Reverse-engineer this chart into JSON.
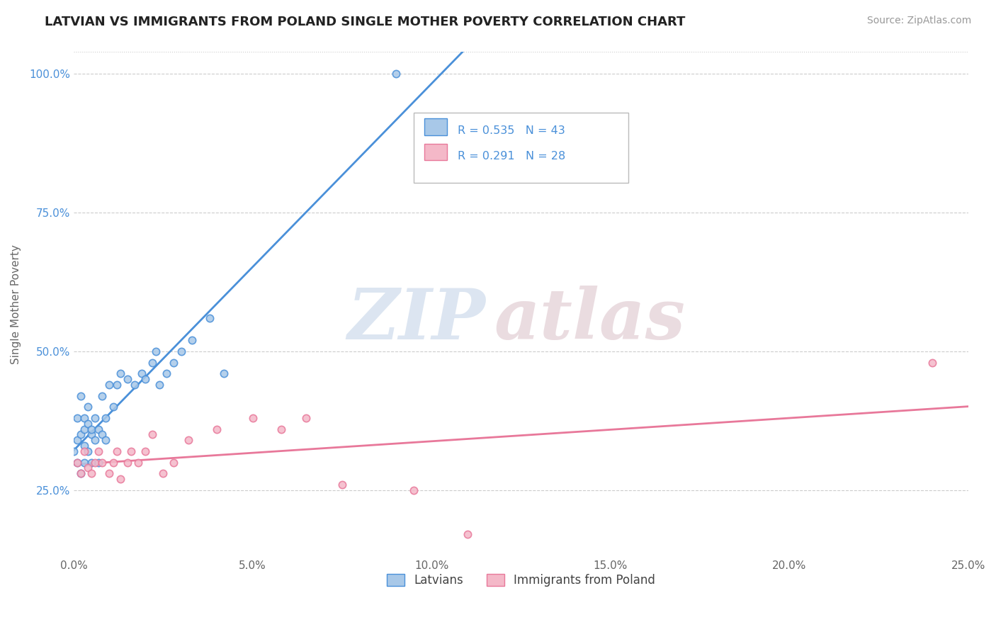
{
  "title": "LATVIAN VS IMMIGRANTS FROM POLAND SINGLE MOTHER POVERTY CORRELATION CHART",
  "source": "Source: ZipAtlas.com",
  "ylabel": "Single Mother Poverty",
  "xlim": [
    0.0,
    0.25
  ],
  "ylim": [
    0.13,
    1.04
  ],
  "xticks": [
    0.0,
    0.05,
    0.1,
    0.15,
    0.2,
    0.25
  ],
  "xtick_labels": [
    "0.0%",
    "5.0%",
    "10.0%",
    "15.0%",
    "20.0%",
    "25.0%"
  ],
  "yticks": [
    0.25,
    0.5,
    0.75,
    1.0
  ],
  "ytick_labels": [
    "25.0%",
    "50.0%",
    "75.0%",
    "100.0%"
  ],
  "legend_labels": [
    "Latvians",
    "Immigrants from Poland"
  ],
  "r_latvian": 0.535,
  "n_latvian": 43,
  "r_poland": 0.291,
  "n_poland": 28,
  "color_latvian": "#a8c8e8",
  "color_poland": "#f4b8c8",
  "trendline_latvian": "#4a90d9",
  "trendline_poland": "#e8789a",
  "latvian_x": [
    0.0,
    0.001,
    0.001,
    0.001,
    0.002,
    0.002,
    0.002,
    0.003,
    0.003,
    0.003,
    0.003,
    0.004,
    0.004,
    0.004,
    0.005,
    0.005,
    0.005,
    0.006,
    0.006,
    0.007,
    0.007,
    0.008,
    0.008,
    0.009,
    0.009,
    0.01,
    0.011,
    0.012,
    0.013,
    0.015,
    0.017,
    0.019,
    0.02,
    0.022,
    0.023,
    0.024,
    0.026,
    0.028,
    0.03,
    0.033,
    0.038,
    0.042,
    0.09
  ],
  "latvian_y": [
    0.32,
    0.3,
    0.34,
    0.38,
    0.28,
    0.35,
    0.42,
    0.33,
    0.38,
    0.3,
    0.36,
    0.32,
    0.37,
    0.4,
    0.35,
    0.3,
    0.36,
    0.34,
    0.38,
    0.36,
    0.3,
    0.42,
    0.35,
    0.38,
    0.34,
    0.44,
    0.4,
    0.44,
    0.46,
    0.45,
    0.44,
    0.46,
    0.45,
    0.48,
    0.5,
    0.44,
    0.46,
    0.48,
    0.5,
    0.52,
    0.56,
    0.46,
    1.0
  ],
  "poland_x": [
    0.001,
    0.002,
    0.003,
    0.004,
    0.005,
    0.006,
    0.007,
    0.008,
    0.01,
    0.011,
    0.012,
    0.013,
    0.015,
    0.016,
    0.018,
    0.02,
    0.022,
    0.025,
    0.028,
    0.032,
    0.04,
    0.05,
    0.058,
    0.065,
    0.075,
    0.095,
    0.11,
    0.24
  ],
  "poland_y": [
    0.3,
    0.28,
    0.32,
    0.29,
    0.28,
    0.3,
    0.32,
    0.3,
    0.28,
    0.3,
    0.32,
    0.27,
    0.3,
    0.32,
    0.3,
    0.32,
    0.35,
    0.28,
    0.3,
    0.34,
    0.36,
    0.38,
    0.36,
    0.38,
    0.26,
    0.25,
    0.17,
    0.48
  ],
  "watermark_zip": "ZIP",
  "watermark_atlas": "atlas",
  "background_color": "#ffffff",
  "grid_color": "#cccccc",
  "title_fontsize": 13,
  "source_fontsize": 10,
  "tick_fontsize": 11,
  "ylabel_fontsize": 11
}
